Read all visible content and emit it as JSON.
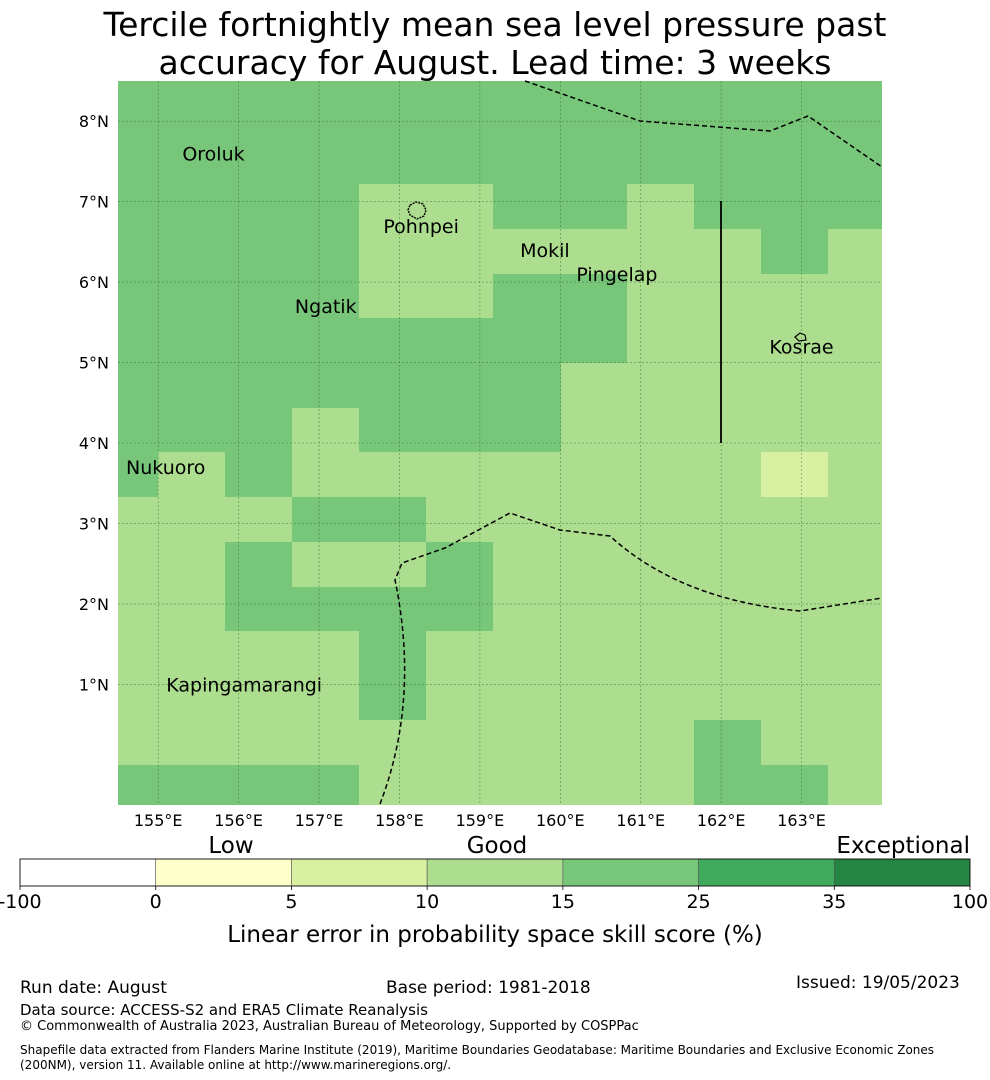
{
  "title_line1": "Tercile fortnightly mean sea level pressure past",
  "title_line2": "accuracy for August. Lead time: 3 weeks",
  "map": {
    "lon_range": [
      154.5,
      164.0
    ],
    "lat_range": [
      -0.5,
      8.5
    ],
    "x_ticks": [
      "155°E",
      "156°E",
      "157°E",
      "158°E",
      "159°E",
      "160°E",
      "161°E",
      "162°E",
      "163°E"
    ],
    "y_ticks": [
      "8°N",
      "7°N",
      "6°N",
      "5°N",
      "4°N",
      "3°N",
      "2°N",
      "1°N"
    ],
    "places": [
      {
        "name": "Oroluk",
        "lon": 155.3,
        "lat": 7.6
      },
      {
        "name": "Pohnpei",
        "lon": 157.8,
        "lat": 6.7
      },
      {
        "name": "Mokil",
        "lon": 159.5,
        "lat": 6.4
      },
      {
        "name": "Pingelap",
        "lon": 160.2,
        "lat": 6.1
      },
      {
        "name": "Ngatik",
        "lon": 156.7,
        "lat": 5.7
      },
      {
        "name": "Kosrae",
        "lon": 162.6,
        "lat": 5.2
      },
      {
        "name": "Nukuoro",
        "lon": 154.6,
        "lat": 3.7
      },
      {
        "name": "Kapingamarangi",
        "lon": 155.1,
        "lat": 1.0
      }
    ]
  },
  "colorbar": {
    "categories": [
      "Low",
      "Good",
      "Exceptional"
    ],
    "ticks": [
      "-100",
      "0",
      "5",
      "10",
      "15",
      "25",
      "35",
      "100"
    ],
    "colors": [
      "#ffffff",
      "#ffffcc",
      "#d9f0a3",
      "#addd8e",
      "#78c679",
      "#41ab5d",
      "#238443"
    ],
    "label": "Linear error in probability space skill score (%)"
  },
  "footer": {
    "run_date": "Run date: August",
    "base_period": "Base period: 1981-2018",
    "issued": "Issued: 19/05/2023",
    "data_source": "Data source: ACCESS-S2 and ERA5 Climate Reanalysis",
    "copyright": "© Commonwealth of Australia 2023, Australian Bureau of Meteorology, Supported by COSPPac",
    "shapefile": "Shapefile data extracted from Flanders Marine Institute (2019), Maritime Boundaries Geodatabase: Maritime Boundaries and Exclusive Economic Zones (200NM), version 11. Available online at http://www.marineregions.org/."
  }
}
